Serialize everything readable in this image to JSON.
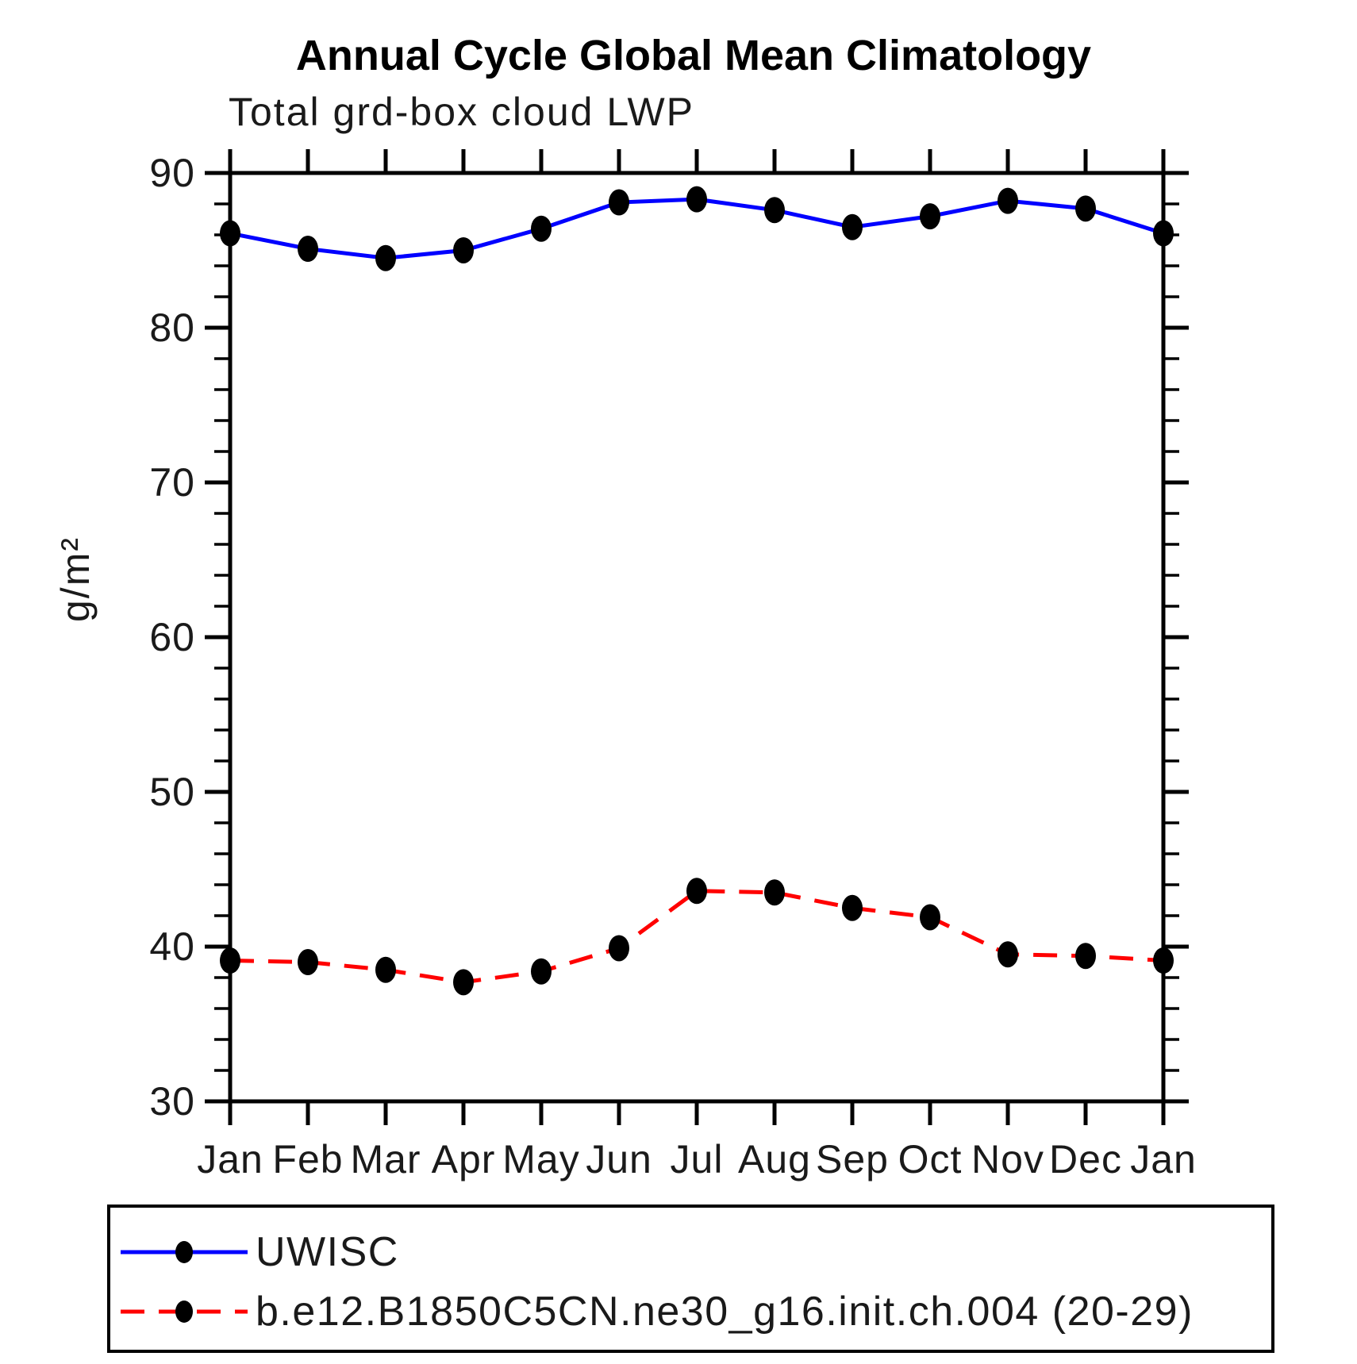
{
  "title": "Annual Cycle Global Mean Climatology",
  "subtitle": "Total grd-box cloud LWP",
  "ylabel": "g/m²",
  "chart_data": {
    "type": "line",
    "categories": [
      "Jan",
      "Feb",
      "Mar",
      "Apr",
      "May",
      "Jun",
      "Jul",
      "Aug",
      "Sep",
      "Oct",
      "Nov",
      "Dec",
      "Jan"
    ],
    "ylim": [
      30,
      90
    ],
    "ytick_major": [
      90,
      80,
      70,
      60,
      50,
      40,
      30
    ],
    "ytick_minor_step": 2,
    "grid": false,
    "legend_position": "bottom-left-box",
    "marker_color": "#000000",
    "series": [
      {
        "name": "UWISC",
        "color": "#0000ff",
        "style": "solid",
        "marker": "filled-dot",
        "values": [
          86.1,
          85.1,
          84.5,
          85.0,
          86.4,
          88.1,
          88.3,
          87.6,
          86.5,
          87.2,
          88.2,
          87.7,
          86.1
        ]
      },
      {
        "name": "b.e12.B1850C5CN.ne30_g16.init.ch.004 (20-29)",
        "color": "#ff0000",
        "style": "dashed",
        "marker": "filled-dot",
        "values": [
          39.1,
          39.0,
          38.5,
          37.7,
          38.4,
          39.9,
          43.6,
          43.5,
          42.5,
          41.9,
          39.5,
          39.4,
          39.1
        ]
      }
    ]
  }
}
